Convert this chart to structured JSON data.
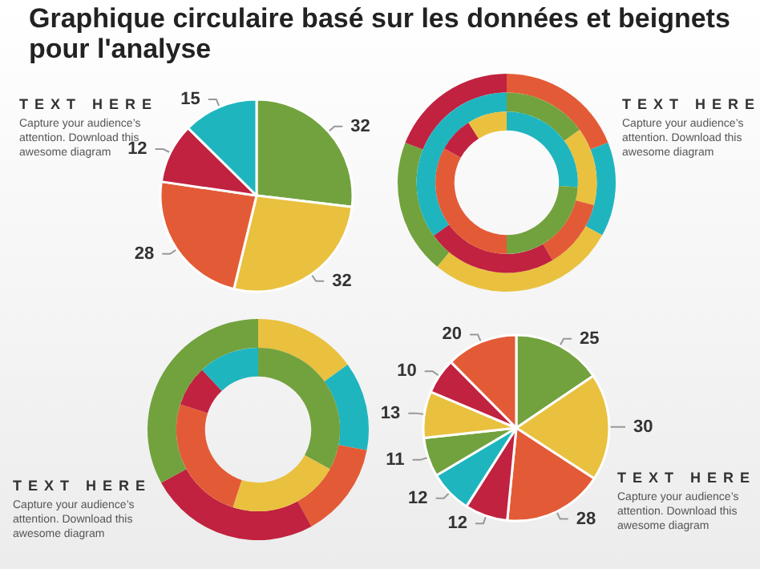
{
  "chart_data": [
    {
      "type": "pie",
      "title": "Graphique circulaire basé sur les données et beignets pour l'analyse",
      "categories": [
        null,
        null,
        null,
        null,
        null
      ],
      "values": [
        32,
        32,
        28,
        12,
        15
      ],
      "colors": [
        "#72a23e",
        "#e9c13f",
        "#e35b36",
        "#c0223f",
        "#1fb5bf"
      ],
      "data_labels": true,
      "annotations": [
        "TEXT HERE",
        "Capture your audience’s attention. Download this awesome diagram"
      ]
    },
    {
      "type": "donut",
      "categories": [
        null,
        null,
        null,
        null,
        null
      ],
      "series": [
        {
          "values": [
            19,
            14,
            28,
            20,
            19
          ],
          "colors": [
            "#e35b36",
            "#1fb5bf",
            "#e9c13f",
            "#72a23e",
            "#c0223f"
          ]
        },
        {
          "values": [
            15,
            14,
            12.5,
            23.5,
            35
          ],
          "colors": [
            "#72a23e",
            "#e9c13f",
            "#e35b36",
            "#c0223f",
            "#1fb5bf"
          ]
        },
        {
          "values": [
            26,
            24,
            33,
            8,
            9
          ],
          "colors": [
            "#1fb5bf",
            "#72a23e",
            "#e35b36",
            "#c0223f",
            "#e9c13f"
          ]
        }
      ],
      "annotations": [
        "TEXT HERE",
        "Capture your audience’s attention. Download this awesome diagram"
      ]
    },
    {
      "type": "donut",
      "categories": [
        null,
        null,
        null,
        null,
        null
      ],
      "series": [
        {
          "values": [
            15,
            13,
            14,
            25,
            33
          ],
          "colors": [
            "#e9c13f",
            "#1fb5bf",
            "#e35b36",
            "#c0223f",
            "#72a23e"
          ]
        },
        {
          "values": [
            33,
            22,
            25,
            8,
            12
          ],
          "colors": [
            "#72a23e",
            "#e9c13f",
            "#e35b36",
            "#c0223f",
            "#1fb5bf"
          ]
        }
      ],
      "annotations": [
        "TEXT HERE",
        "Capture your audience’s attention. Download this awesome diagram"
      ]
    },
    {
      "type": "pie",
      "categories": [
        null,
        null,
        null,
        null,
        null,
        null,
        null,
        null,
        null
      ],
      "values": [
        25,
        30,
        28,
        12,
        12,
        11,
        13,
        10,
        20
      ],
      "colors": [
        "#72a23e",
        "#e9c13f",
        "#e35b36",
        "#c0223f",
        "#1fb5bf",
        "#72a23e",
        "#e9c13f",
        "#c0223f",
        "#e35b36"
      ],
      "data_labels": true,
      "annotations": [
        "TEXT HERE",
        "Capture your audience’s attention. Download this awesome diagram"
      ]
    }
  ]
}
